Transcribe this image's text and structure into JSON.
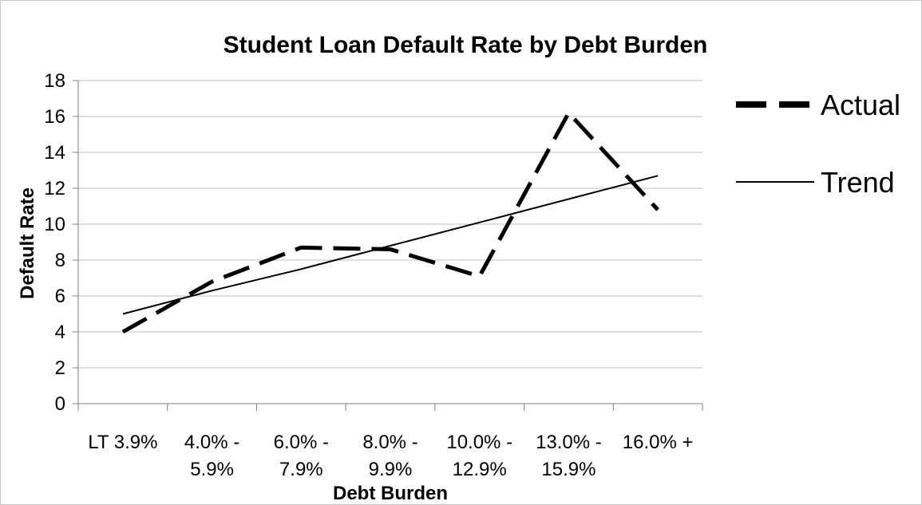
{
  "chart_data": {
    "type": "line",
    "title": "Student Loan Default Rate by Debt Burden",
    "xlabel": "Debt Burden",
    "ylabel": "Default Rate",
    "categories": [
      [
        "LT 3.9%"
      ],
      [
        "4.0% -",
        "5.9%"
      ],
      [
        "6.0% -",
        "7.9%"
      ],
      [
        "8.0% -",
        "9.9%"
      ],
      [
        "10.0% -",
        "12.9%"
      ],
      [
        "13.0% -",
        "15.9%"
      ],
      [
        "16.0% +"
      ]
    ],
    "ylim": [
      0,
      18
    ],
    "yticks": [
      "0",
      "2",
      "4",
      "6",
      "8",
      "10",
      "12",
      "14",
      "16",
      "18"
    ],
    "grid": true,
    "legend_position": "right",
    "series": [
      {
        "name": "Actual",
        "style": "dashed",
        "values": [
          4.0,
          6.8,
          8.7,
          8.6,
          7.1,
          16.2,
          10.8
        ]
      },
      {
        "name": "Trend",
        "style": "solid",
        "values": [
          5.0,
          6.3,
          7.5,
          8.8,
          10.1,
          11.4,
          12.7
        ]
      }
    ],
    "colors": {
      "line": "#000000",
      "grid": "#bfbfbf",
      "axis": "#808080"
    }
  }
}
